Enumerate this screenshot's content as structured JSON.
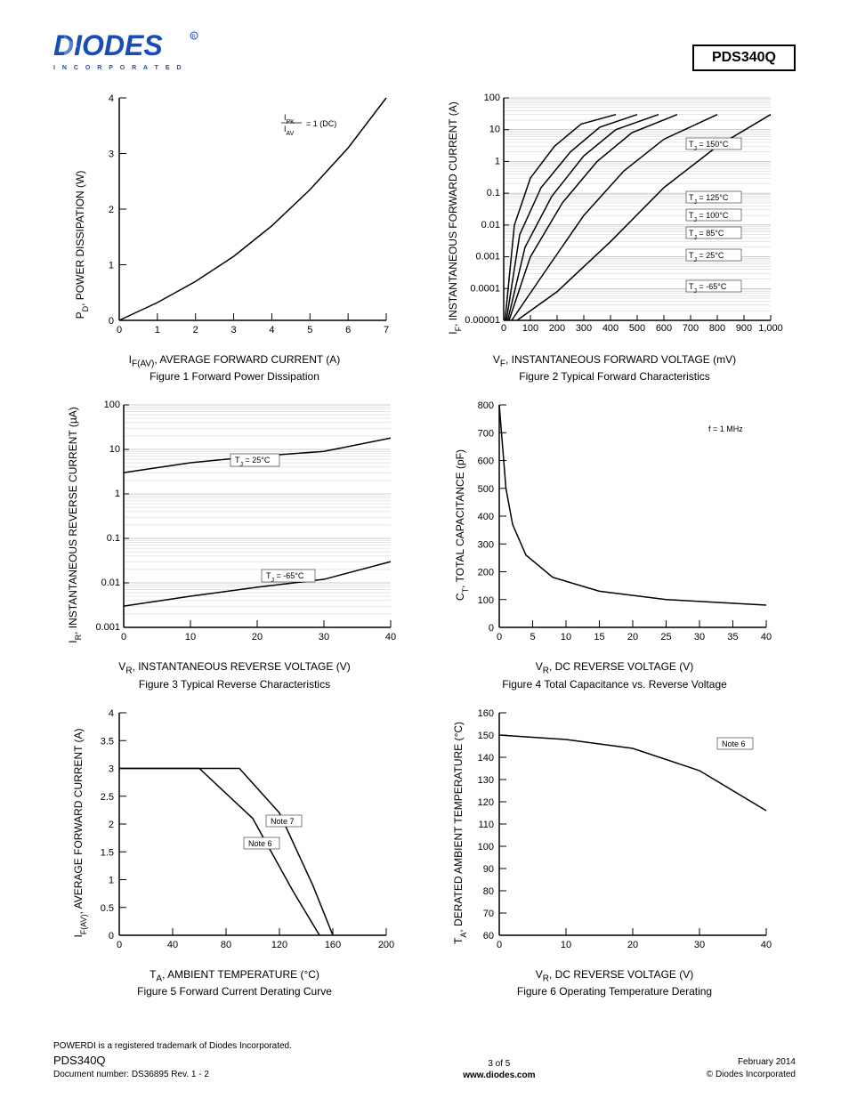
{
  "header": {
    "logo_primary": "DIODES",
    "logo_sub": "I N C O R P O R A T E D",
    "part_number": "PDS340Q"
  },
  "figure1": {
    "type": "line",
    "xlabel": "I_F(AV), AVERAGE FORWARD CURRENT (A)",
    "ylabel": "P_D, POWER DISSIPATION (W)",
    "caption": "Figure 1 Forward Power Dissipation",
    "xlim": [
      0,
      7
    ],
    "ylim": [
      0,
      4
    ],
    "xticks": [
      0,
      1,
      2,
      3,
      4,
      5,
      6,
      7
    ],
    "yticks": [
      0,
      1,
      2,
      3,
      4
    ],
    "annotation": "I_PK / I_AV = 1 (DC)",
    "curve_x": [
      0,
      1,
      2,
      3,
      4,
      5,
      6,
      7
    ],
    "curve_y": [
      0,
      0.32,
      0.7,
      1.15,
      1.7,
      2.35,
      3.1,
      4.0
    ],
    "line_color": "#000000",
    "background_color": "#ffffff"
  },
  "figure2": {
    "type": "line-log-y",
    "xlabel": "V_F, INSTANTANEOUS FORWARD VOLTAGE (mV)",
    "ylabel": "I_F, INSTANTANEOUS FORWARD CURRENT (A)",
    "caption": "Figure 2 Typical Forward Characteristics",
    "xlim": [
      0,
      1000
    ],
    "ylim": [
      1e-05,
      100
    ],
    "xticks": [
      0,
      100,
      200,
      300,
      400,
      500,
      600,
      700,
      800,
      900,
      1000
    ],
    "xtick_labels": [
      "0",
      "100",
      "200",
      "300",
      "400",
      "500",
      "600",
      "700",
      "800",
      "900",
      "1,000"
    ],
    "yticks": [
      1e-05,
      0.0001,
      0.001,
      0.01,
      0.1,
      1,
      10,
      100
    ],
    "ytick_labels": [
      "0.00001",
      "0.0001",
      "0.001",
      "0.01",
      "0.1",
      "1",
      "10",
      "100"
    ],
    "series": [
      {
        "label": "T_J = -65°C",
        "x": [
          50,
          200,
          400,
          600,
          800,
          1000
        ],
        "y": [
          1e-05,
          8e-05,
          0.003,
          0.15,
          3,
          30
        ]
      },
      {
        "label": "T_J = 25°C",
        "x": [
          30,
          150,
          300,
          450,
          600,
          800
        ],
        "y": [
          1e-05,
          0.0003,
          0.02,
          0.5,
          5,
          30
        ]
      },
      {
        "label": "T_J = 85°C",
        "x": [
          20,
          100,
          220,
          350,
          480,
          650
        ],
        "y": [
          1e-05,
          0.001,
          0.05,
          1,
          8,
          30
        ]
      },
      {
        "label": "T_J = 100°C",
        "x": [
          15,
          80,
          180,
          300,
          420,
          580
        ],
        "y": [
          1e-05,
          0.002,
          0.08,
          1.5,
          10,
          30
        ]
      },
      {
        "label": "T_J = 125°C",
        "x": [
          10,
          60,
          140,
          250,
          360,
          500
        ],
        "y": [
          1e-05,
          0.005,
          0.15,
          2,
          12,
          30
        ]
      },
      {
        "label": "T_J = 150°C",
        "x": [
          5,
          40,
          100,
          190,
          290,
          420
        ],
        "y": [
          1e-05,
          0.01,
          0.3,
          3,
          15,
          30
        ]
      }
    ],
    "line_color": "#000000"
  },
  "figure3": {
    "type": "line-log-y",
    "xlabel": "V_R, INSTANTANEOUS REVERSE VOLTAGE (V)",
    "ylabel": "I_R, INSTANTANEOUS REVERSE CURRENT (µA)",
    "caption": "Figure 3 Typical Reverse Characteristics",
    "xlim": [
      0,
      40
    ],
    "ylim": [
      0.001,
      100
    ],
    "xticks": [
      0,
      10,
      20,
      30,
      40
    ],
    "yticks": [
      0.001,
      0.01,
      0.1,
      1,
      10,
      100
    ],
    "ytick_labels": [
      "0.001",
      "0.01",
      "0.1",
      "1",
      "10",
      "100"
    ],
    "series": [
      {
        "label": "T_J = 25°C",
        "x": [
          0,
          10,
          20,
          30,
          40
        ],
        "y": [
          3,
          5,
          7,
          9,
          18
        ]
      },
      {
        "label": "T_J = -65°C",
        "x": [
          0,
          10,
          20,
          30,
          40
        ],
        "y": [
          0.003,
          0.005,
          0.008,
          0.012,
          0.03
        ]
      }
    ],
    "line_color": "#000000"
  },
  "figure4": {
    "type": "line",
    "xlabel": "V_R, DC REVERSE VOLTAGE (V)",
    "ylabel": "C_T, TOTAL CAPACITANCE (pF)",
    "caption": "Figure 4 Total Capacitance vs. Reverse Voltage",
    "xlim": [
      0,
      40
    ],
    "ylim": [
      0,
      800
    ],
    "xticks": [
      0,
      5,
      10,
      15,
      20,
      25,
      30,
      35,
      40
    ],
    "yticks": [
      0,
      100,
      200,
      300,
      400,
      500,
      600,
      700,
      800
    ],
    "annotation": "f = 1 MHz",
    "curve_x": [
      0,
      1,
      2,
      4,
      8,
      15,
      25,
      40
    ],
    "curve_y": [
      800,
      500,
      370,
      260,
      180,
      130,
      100,
      80
    ],
    "line_color": "#000000"
  },
  "figure5": {
    "type": "line",
    "xlabel": "T_A, AMBIENT TEMPERATURE (°C)",
    "ylabel": "I_F(AV), AVERAGE FORWARD CURRENT (A)",
    "caption": "Figure 5 Forward Current Derating Curve",
    "xlim": [
      0,
      200
    ],
    "ylim": [
      0,
      4
    ],
    "xticks": [
      0,
      40,
      80,
      120,
      160,
      200
    ],
    "yticks": [
      0,
      0.5,
      1,
      1.5,
      2,
      2.5,
      3,
      3.5,
      4
    ],
    "series": [
      {
        "label": "Note 6",
        "x": [
          0,
          60,
          100,
          130,
          150
        ],
        "y": [
          3,
          3,
          2.1,
          0.8,
          0
        ]
      },
      {
        "label": "Note 7",
        "x": [
          0,
          90,
          120,
          145,
          160
        ],
        "y": [
          3,
          3,
          2.2,
          0.9,
          0
        ]
      }
    ],
    "line_color": "#000000"
  },
  "figure6": {
    "type": "line",
    "xlabel": "V_R, DC REVERSE VOLTAGE (V)",
    "ylabel": "T_A, DERATED AMBIENT TEMPERATURE (°C)",
    "caption": "Figure 6 Operating Temperature Derating",
    "xlim": [
      0,
      40
    ],
    "ylim": [
      60,
      160
    ],
    "xticks": [
      0,
      10,
      20,
      30,
      40
    ],
    "yticks": [
      60,
      70,
      80,
      90,
      100,
      110,
      120,
      130,
      140,
      150,
      160
    ],
    "annotation": "Note 6",
    "curve_x": [
      0,
      10,
      20,
      30,
      40
    ],
    "curve_y": [
      150,
      148,
      144,
      134,
      116
    ],
    "line_color": "#000000"
  },
  "footer": {
    "trademark": "POWERDI is a registered trademark of Diodes Incorporated.",
    "part": "PDS340Q",
    "docnum": "Document number: DS36895 Rev. 1 - 2",
    "page": "3 of 5",
    "url": "www.diodes.com",
    "date": "February 2014",
    "copyright": "© Diodes Incorporated"
  }
}
